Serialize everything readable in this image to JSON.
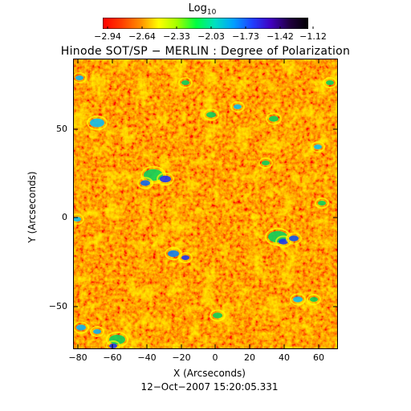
{
  "colorbar": {
    "title": "Log",
    "title_subscript": "10",
    "tick_labels": [
      "−2.94",
      "−2.64",
      "−2.33",
      "−2.03",
      "−1.73",
      "−1.42",
      "−1.12"
    ],
    "colors": [
      "#ff0000",
      "#ff3c00",
      "#ff8c00",
      "#ffff00",
      "#a0ff00",
      "#00ff40",
      "#00e0c0",
      "#00a0ff",
      "#2040ff",
      "#4000c0",
      "#200040",
      "#000000"
    ]
  },
  "title": "Hinode SOT/SP − MERLIN : Degree of Polarization",
  "x_axis": {
    "label": "X (Arcseconds)",
    "range": [
      -83,
      71
    ],
    "ticks": [
      "−80",
      "−60",
      "−40",
      "−20",
      "0",
      "20",
      "40",
      "60"
    ]
  },
  "y_axis": {
    "label": "Y (Arcseconds)",
    "range": [
      -74,
      88
    ],
    "ticks": [
      "50",
      "0",
      "−50"
    ]
  },
  "timestamp": "12−Oct−2007 15:20:05.331"
}
